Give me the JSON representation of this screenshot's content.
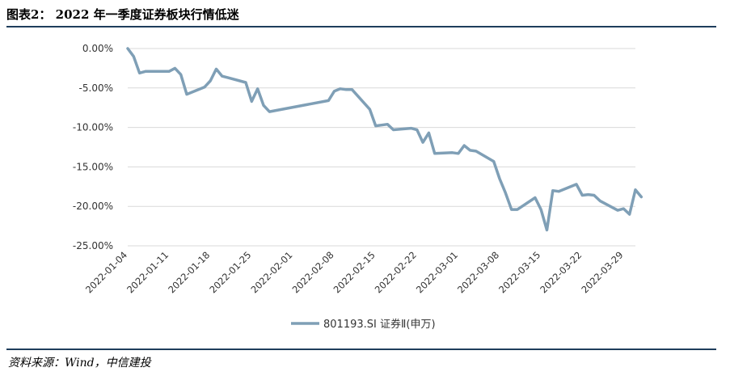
{
  "title": "图表2： 2022 年一季度证券板块行情低迷",
  "source": "资料来源：Wind，中信建投",
  "chart_data": {
    "type": "line",
    "ylim": [
      -0.25,
      0.0
    ],
    "y_ticks": [
      0.0,
      -0.05,
      -0.1,
      -0.15,
      -0.2,
      -0.25
    ],
    "y_tick_labels": [
      "0.00%",
      "-5.00%",
      "-10.00%",
      "-15.00%",
      "-20.00%",
      "-25.00%"
    ],
    "x_tick_labels": [
      "2022-01-04",
      "2022-01-11",
      "2022-01-18",
      "2022-01-25",
      "2022-02-01",
      "2022-02-08",
      "2022-02-15",
      "2022-02-22",
      "2022-03-01",
      "2022-03-08",
      "2022-03-15",
      "2022-03-22",
      "2022-03-29"
    ],
    "x_range": [
      "2022-01-04",
      "2022-03-31"
    ],
    "grid": "horizontal",
    "legend_position": "bottom",
    "color": "#7f9fb6",
    "series": [
      {
        "name": "801193.SI 证券Ⅱ(申万)",
        "points": [
          [
            "2022-01-04",
            0.0
          ],
          [
            "2022-01-05",
            -0.01
          ],
          [
            "2022-01-06",
            -0.031
          ],
          [
            "2022-01-07",
            -0.029
          ],
          [
            "2022-01-10",
            -0.029
          ],
          [
            "2022-01-11",
            -0.029
          ],
          [
            "2022-01-12",
            -0.025
          ],
          [
            "2022-01-13",
            -0.033
          ],
          [
            "2022-01-14",
            -0.058
          ],
          [
            "2022-01-17",
            -0.049
          ],
          [
            "2022-01-18",
            -0.041
          ],
          [
            "2022-01-19",
            -0.026
          ],
          [
            "2022-01-20",
            -0.035
          ],
          [
            "2022-01-21",
            -0.037
          ],
          [
            "2022-01-24",
            -0.043
          ],
          [
            "2022-01-25",
            -0.067
          ],
          [
            "2022-01-26",
            -0.051
          ],
          [
            "2022-01-27",
            -0.072
          ],
          [
            "2022-01-28",
            -0.08
          ],
          [
            "2022-02-07",
            -0.066
          ],
          [
            "2022-02-08",
            -0.054
          ],
          [
            "2022-02-09",
            -0.051
          ],
          [
            "2022-02-10",
            -0.052
          ],
          [
            "2022-02-11",
            -0.052
          ],
          [
            "2022-02-14",
            -0.077
          ],
          [
            "2022-02-15",
            -0.098
          ],
          [
            "2022-02-16",
            -0.097
          ],
          [
            "2022-02-17",
            -0.096
          ],
          [
            "2022-02-18",
            -0.103
          ],
          [
            "2022-02-21",
            -0.101
          ],
          [
            "2022-02-22",
            -0.103
          ],
          [
            "2022-02-23",
            -0.119
          ],
          [
            "2022-02-24",
            -0.107
          ],
          [
            "2022-02-25",
            -0.133
          ],
          [
            "2022-02-28",
            -0.132
          ],
          [
            "2022-03-01",
            -0.133
          ],
          [
            "2022-03-02",
            -0.123
          ],
          [
            "2022-03-03",
            -0.129
          ],
          [
            "2022-03-04",
            -0.13
          ],
          [
            "2022-03-07",
            -0.143
          ],
          [
            "2022-03-08",
            -0.165
          ],
          [
            "2022-03-09",
            -0.183
          ],
          [
            "2022-03-10",
            -0.204
          ],
          [
            "2022-03-11",
            -0.204
          ],
          [
            "2022-03-14",
            -0.189
          ],
          [
            "2022-03-15",
            -0.204
          ],
          [
            "2022-03-16",
            -0.23
          ],
          [
            "2022-03-17",
            -0.18
          ],
          [
            "2022-03-18",
            -0.181
          ],
          [
            "2022-03-21",
            -0.172
          ],
          [
            "2022-03-22",
            -0.186
          ],
          [
            "2022-03-23",
            -0.185
          ],
          [
            "2022-03-24",
            -0.186
          ],
          [
            "2022-03-25",
            -0.193
          ],
          [
            "2022-03-28",
            -0.205
          ],
          [
            "2022-03-29",
            -0.203
          ],
          [
            "2022-03-30",
            -0.21
          ],
          [
            "2022-03-31",
            -0.179
          ],
          [
            "2022-04-01",
            -0.188
          ]
        ]
      }
    ]
  }
}
